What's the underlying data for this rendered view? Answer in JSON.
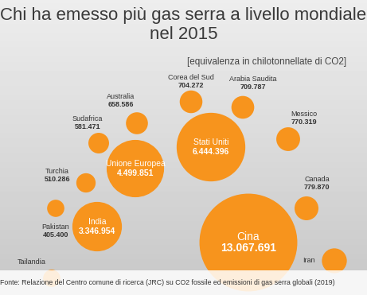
{
  "chart_data": {
    "type": "bubble",
    "title": "Chi ha emesso più gas serra a livello mondiale nel 2015",
    "subtitle": "[equivalenza in chilotonnellate di CO2]",
    "source": "Fonte: Relazione del Centro comune di ricerca (JRC) su CO2 fossile ed emissioni di gas serra globali (2019)",
    "categories": [
      "Tailandia",
      "Pakistan",
      "Turchia",
      "India",
      "Unione Europea",
      "Sudafrica",
      "Australia",
      "Corea del Sud",
      "Stati Uniti",
      "Arabia Saudita",
      "Messico",
      "Canada",
      "Cina",
      "Iran"
    ],
    "values": [
      410000,
      405400,
      510286,
      3346954,
      4499851,
      581471,
      658586,
      704272,
      6444396,
      709787,
      770319,
      779870,
      13067691,
      850000
    ],
    "value_labels": [
      null,
      "405.400",
      "510.286",
      "3.346.954",
      "4.499.851",
      "581.471",
      "658.586",
      "704.272",
      "6.444.396",
      "709.787",
      "770.319",
      "779.870",
      "13.067.691",
      null
    ],
    "color": "#f7941d"
  }
}
